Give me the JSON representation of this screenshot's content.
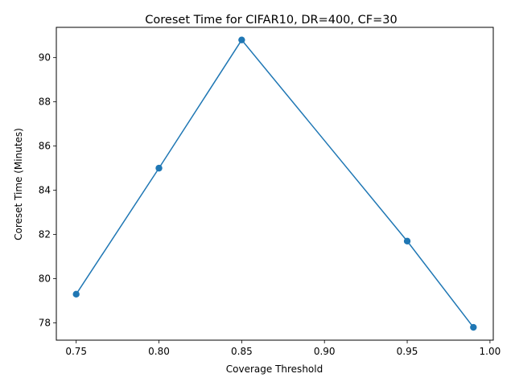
{
  "chart_data": {
    "type": "line",
    "title": "Coreset Time for CIFAR10, DR=400, CF=30",
    "xlabel": "Coverage Threshold",
    "ylabel": "Coreset Time (Minutes)",
    "xlim": [
      0.738,
      1.002
    ],
    "ylim": [
      77.22,
      91.37
    ],
    "x_ticks": [
      "0.75",
      "0.80",
      "0.85",
      "0.90",
      "0.95",
      "1.00"
    ],
    "y_ticks": [
      "78",
      "80",
      "82",
      "84",
      "86",
      "88",
      "90"
    ],
    "grid": false,
    "series": [
      {
        "color": "#1f77b4",
        "marker": "circle",
        "points": [
          {
            "x": 0.75,
            "y": 79.3
          },
          {
            "x": 0.8,
            "y": 85.0
          },
          {
            "x": 0.85,
            "y": 90.8
          },
          {
            "x": 0.95,
            "y": 81.7
          },
          {
            "x": 0.99,
            "y": 77.8
          }
        ]
      }
    ]
  }
}
